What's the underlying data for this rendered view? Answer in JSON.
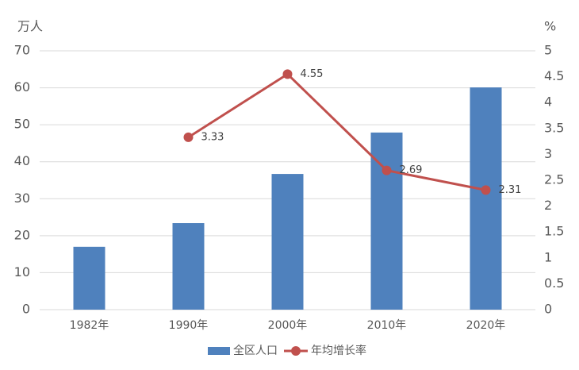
{
  "chart_data": {
    "type": "bar",
    "y_label": "万人",
    "y2_label": "%",
    "categories": [
      "1982年",
      "1990年",
      "2000年",
      "2010年",
      "2020年"
    ],
    "series": [
      {
        "name": "全区人口",
        "type": "bar",
        "color": "#4f81bd",
        "values": [
          17.0,
          23.4,
          36.7,
          47.9,
          60.1
        ]
      },
      {
        "name": "年均增长率",
        "type": "line",
        "axis": "y2",
        "color": "#c0504d",
        "values": [
          null,
          3.33,
          4.55,
          2.69,
          2.31
        ],
        "data_labels": true
      }
    ],
    "ylim": [
      0,
      70
    ],
    "yticks": [
      0,
      10,
      20,
      30,
      40,
      50,
      60,
      70
    ],
    "y2lim": [
      0,
      5
    ],
    "y2ticks": [
      0,
      0.5,
      1,
      1.5,
      2,
      2.5,
      3,
      3.5,
      4,
      4.5,
      5
    ],
    "grid": true,
    "legend": "bottom"
  }
}
